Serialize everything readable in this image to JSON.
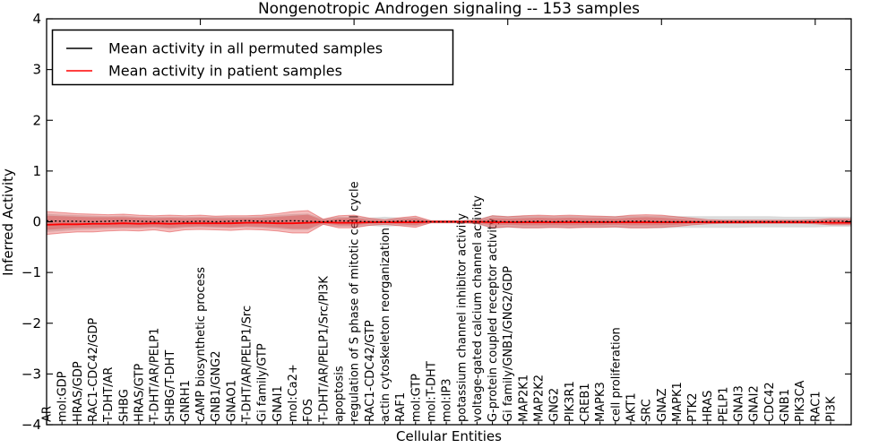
{
  "chart_data": {
    "type": "line",
    "title": "Nongenotropic Androgen signaling -- 153 samples",
    "xlabel": "Cellular Entities",
    "ylabel": "Inferred Activity",
    "ylim": [
      -4,
      4
    ],
    "yticks": [
      -4,
      -3,
      -2,
      -1,
      0,
      1,
      2,
      3,
      4
    ],
    "grid": false,
    "legend_position": "upper left",
    "categories": [
      "AR",
      "mol:GDP",
      "HRAS/GDP",
      "RAC1-CDC42/GDP",
      "T-DHT/AR",
      "SHBG",
      "HRAS/GTP",
      "T-DHT/AR/PELP1",
      "SHBG/T-DHT",
      "GNRH1",
      "cAMP biosynthetic process",
      "GNB1/GNG2",
      "GNAO1",
      "T-DHT/AR/PELP1/Src",
      "Gi family/GTP",
      "GNAI1",
      "mol:Ca2+",
      "FOS",
      "T-DHT/AR/PELP1/Src/PI3K",
      "apoptosis",
      "regulation of S phase of mitotic cell cycle",
      "RAC1-CDC42/GTP",
      "actin cytoskeleton reorganization",
      "RAF1",
      "mol:GTP",
      "mol:T-DHT",
      "mol:IP3",
      "potassium channel inhibitor activity",
      "voltage-gated calcium channel activity",
      "G-protein coupled receptor activity",
      "Gi family/GNB1/GNG2/GDP",
      "MAP2K1",
      "MAP2K2",
      "GNG2",
      "PIK3R1",
      "CREB1",
      "MAPK3",
      "cell proliferation",
      "AKT1",
      "SRC",
      "GNAZ",
      "MAPK1",
      "PTK2",
      "HRAS",
      "PELP1",
      "GNAI3",
      "GNAI2",
      "CDC42",
      "GNB1",
      "PIK3CA",
      "RAC1",
      "PI3K"
    ],
    "series": [
      {
        "name": "Mean activity in all permuted samples",
        "color": "#000000",
        "style": "dashed",
        "values": [
          0.02,
          0.01,
          0.01,
          0.0,
          0.01,
          0.02,
          0.01,
          0.0,
          0.01,
          0.0,
          0.01,
          0.0,
          0.01,
          0.02,
          0.01,
          0.01,
          0.02,
          0.01,
          0.0,
          0.02,
          0.01,
          0.0,
          0.0,
          0.01,
          0.01,
          0.0,
          0.0,
          0.0,
          0.0,
          0.01,
          0.0,
          0.0,
          0.01,
          0.0,
          0.01,
          0.0,
          0.0,
          0.0,
          0.01,
          0.01,
          0.0,
          0.0,
          0.0,
          0.0,
          0.0,
          0.0,
          0.0,
          0.0,
          0.0,
          0.0,
          0.0,
          0.01
        ]
      },
      {
        "name": "Mean activity in patient samples",
        "color": "#ff0000",
        "style": "solid",
        "values": [
          -0.06,
          -0.05,
          -0.05,
          -0.04,
          -0.04,
          -0.03,
          -0.04,
          -0.03,
          -0.04,
          -0.03,
          -0.03,
          -0.03,
          -0.03,
          -0.02,
          -0.02,
          -0.03,
          -0.03,
          -0.02,
          -0.01,
          -0.02,
          -0.02,
          -0.01,
          -0.01,
          -0.01,
          -0.01,
          0.0,
          0.0,
          0.0,
          0.0,
          -0.01,
          -0.01,
          -0.01,
          -0.01,
          -0.01,
          -0.01,
          -0.01,
          -0.01,
          -0.01,
          -0.01,
          -0.01,
          -0.01,
          -0.01,
          -0.01,
          -0.01,
          -0.01,
          -0.01,
          -0.01,
          -0.01,
          -0.01,
          -0.01,
          -0.01,
          -0.02
        ]
      }
    ],
    "bands": [
      {
        "name": "permuted-samples-std-band",
        "color": "#888888",
        "opacity": 0.3,
        "upper": [
          0.16,
          0.14,
          0.13,
          0.12,
          0.11,
          0.12,
          0.1,
          0.1,
          0.1,
          0.1,
          0.1,
          0.1,
          0.1,
          0.1,
          0.11,
          0.13,
          0.15,
          0.16,
          0.06,
          0.1,
          0.1,
          0.08,
          0.1,
          0.08,
          0.09,
          0.03,
          0.03,
          0.03,
          0.05,
          0.13,
          0.11,
          0.12,
          0.12,
          0.11,
          0.12,
          0.11,
          0.11,
          0.11,
          0.12,
          0.12,
          0.12,
          0.11,
          0.11,
          0.11,
          0.11,
          0.11,
          0.11,
          0.11,
          0.1,
          0.1,
          0.1,
          0.1
        ],
        "lower": [
          -0.2,
          -0.18,
          -0.16,
          -0.15,
          -0.14,
          -0.13,
          -0.13,
          -0.12,
          -0.14,
          -0.12,
          -0.11,
          -0.12,
          -0.12,
          -0.11,
          -0.12,
          -0.14,
          -0.16,
          -0.16,
          -0.06,
          -0.1,
          -0.1,
          -0.08,
          -0.1,
          -0.08,
          -0.09,
          -0.03,
          -0.03,
          -0.03,
          -0.05,
          -0.14,
          -0.12,
          -0.13,
          -0.13,
          -0.12,
          -0.13,
          -0.12,
          -0.12,
          -0.12,
          -0.13,
          -0.13,
          -0.13,
          -0.12,
          -0.12,
          -0.12,
          -0.12,
          -0.12,
          -0.11,
          -0.11,
          -0.11,
          -0.11,
          -0.11,
          -0.1
        ]
      },
      {
        "name": "patient-samples-std-band",
        "color": "#dd3333",
        "opacity": 0.33,
        "upper": [
          0.2,
          0.18,
          0.16,
          0.15,
          0.14,
          0.15,
          0.13,
          0.12,
          0.13,
          0.12,
          0.13,
          0.11,
          0.12,
          0.12,
          0.13,
          0.16,
          0.2,
          0.22,
          0.05,
          0.12,
          0.13,
          0.07,
          0.04,
          0.08,
          0.11,
          0.02,
          0.02,
          0.02,
          0.03,
          0.12,
          0.1,
          0.12,
          0.13,
          0.12,
          0.13,
          0.12,
          0.11,
          0.1,
          0.13,
          0.14,
          0.13,
          0.1,
          0.07,
          0.04,
          0.03,
          0.03,
          0.03,
          0.03,
          0.03,
          0.03,
          0.04,
          0.06
        ],
        "lower": [
          -0.25,
          -0.22,
          -0.2,
          -0.2,
          -0.18,
          -0.17,
          -0.18,
          -0.16,
          -0.2,
          -0.16,
          -0.15,
          -0.16,
          -0.17,
          -0.15,
          -0.16,
          -0.18,
          -0.22,
          -0.22,
          -0.05,
          -0.12,
          -0.12,
          -0.07,
          -0.05,
          -0.08,
          -0.11,
          -0.02,
          -0.02,
          -0.02,
          -0.03,
          -0.12,
          -0.1,
          -0.12,
          -0.12,
          -0.11,
          -0.12,
          -0.11,
          -0.11,
          -0.1,
          -0.12,
          -0.12,
          -0.11,
          -0.09,
          -0.06,
          -0.04,
          -0.03,
          -0.03,
          -0.03,
          -0.03,
          -0.03,
          -0.03,
          -0.04,
          -0.06
        ]
      },
      {
        "name": "patient-samples-inner-band",
        "color": "#dd3333",
        "opacity": 0.33,
        "upper": [
          0.12,
          0.11,
          0.1,
          0.09,
          0.09,
          0.09,
          0.08,
          0.07,
          0.08,
          0.07,
          0.08,
          0.07,
          0.07,
          0.07,
          0.08,
          0.1,
          0.12,
          0.14,
          0.03,
          0.07,
          0.08,
          0.04,
          0.02,
          0.05,
          0.07,
          0.01,
          0.01,
          0.01,
          0.02,
          0.07,
          0.06,
          0.07,
          0.08,
          0.07,
          0.08,
          0.07,
          0.07,
          0.06,
          0.08,
          0.09,
          0.08,
          0.06,
          0.04,
          0.02,
          0.02,
          0.02,
          0.02,
          0.02,
          0.02,
          0.02,
          0.02,
          0.04
        ],
        "lower": [
          -0.16,
          -0.14,
          -0.12,
          -0.12,
          -0.11,
          -0.11,
          -0.11,
          -0.1,
          -0.12,
          -0.1,
          -0.09,
          -0.1,
          -0.11,
          -0.09,
          -0.1,
          -0.11,
          -0.14,
          -0.14,
          -0.03,
          -0.07,
          -0.07,
          -0.04,
          -0.03,
          -0.05,
          -0.07,
          -0.01,
          -0.01,
          -0.01,
          -0.02,
          -0.07,
          -0.06,
          -0.07,
          -0.07,
          -0.07,
          -0.07,
          -0.07,
          -0.07,
          -0.06,
          -0.07,
          -0.07,
          -0.07,
          -0.06,
          -0.04,
          -0.02,
          -0.02,
          -0.02,
          -0.02,
          -0.02,
          -0.02,
          -0.02,
          -0.02,
          -0.04
        ]
      }
    ],
    "top_axis_tick_indices": [
      10,
      20,
      30,
      40,
      50
    ]
  },
  "colors": {
    "axis": "#000000",
    "permuted_line": "#000000",
    "patient_line": "#ff0000",
    "permuted_band": "#888888",
    "patient_band": "#dd3333",
    "background": "#ffffff"
  }
}
